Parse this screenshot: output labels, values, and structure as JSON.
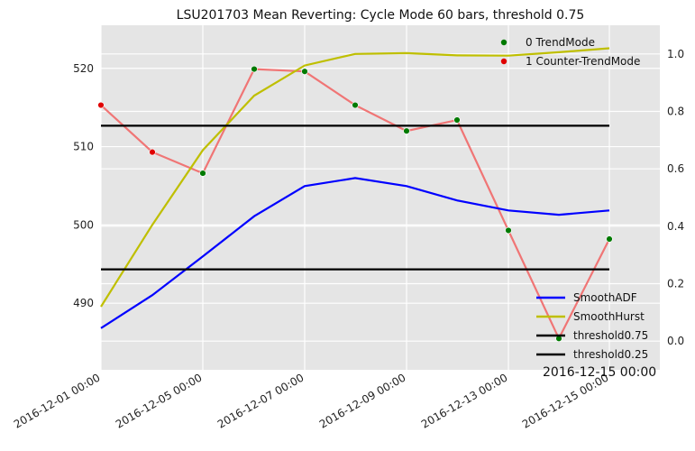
{
  "chart_data": {
    "type": "line",
    "title": "LSU201703 Mean Reverting: Cycle Mode 60 bars, threshold 0.75",
    "annotation": "2016-12-15 00:00",
    "x_tick_labels": [
      "2016-12-01 00:00",
      "2016-12-05 00:00",
      "2016-12-07 00:00",
      "2016-12-09 00:00",
      "2016-12-13 00:00",
      "2016-12-15 00:00"
    ],
    "x": [
      "2016-12-01",
      "2016-12-02",
      "2016-12-05",
      "2016-12-06",
      "2016-12-07",
      "2016-12-08",
      "2016-12-09",
      "2016-12-12",
      "2016-12-13",
      "2016-12-14",
      "2016-12-15"
    ],
    "left_axis": {
      "ylim": [
        481.5,
        525.5
      ],
      "ticks": [
        490,
        500,
        510,
        520
      ]
    },
    "right_axis": {
      "ylim": [
        -0.1,
        1.1
      ],
      "ticks": [
        0.0,
        0.2,
        0.4,
        0.6,
        0.8,
        1.0
      ]
    },
    "price": {
      "color": "#f07575",
      "values": [
        515.3,
        509.3,
        506.6,
        519.9,
        519.6,
        515.3,
        512.0,
        513.4,
        499.3,
        485.5,
        498.2
      ],
      "mode": [
        1,
        1,
        0,
        0,
        0,
        0,
        0,
        0,
        0,
        0,
        0
      ]
    },
    "point_legend": [
      {
        "label": "0 TrendMode",
        "color": "#007a00"
      },
      {
        "label": "1 Counter-TrendMode",
        "color": "#e00000"
      }
    ],
    "series": [
      {
        "name": "SmoothADF",
        "color": "#0000ff",
        "axis": "right",
        "values": [
          0.045,
          0.16,
          0.295,
          0.435,
          0.54,
          0.568,
          0.54,
          0.49,
          0.455,
          0.44,
          0.455
        ]
      },
      {
        "name": "SmoothHurst",
        "color": "#bfbf00",
        "axis": "right",
        "values": [
          0.12,
          0.405,
          0.665,
          0.855,
          0.96,
          1.0,
          1.003,
          0.995,
          0.994,
          1.006,
          1.02
        ]
      },
      {
        "name": "threshold0.75",
        "color": "#000000",
        "axis": "right",
        "values": [
          0.75,
          0.75,
          0.75,
          0.75,
          0.75,
          0.75,
          0.75,
          0.75,
          0.75,
          0.75,
          0.75
        ]
      },
      {
        "name": "threshold0.25",
        "color": "#000000",
        "axis": "right",
        "values": [
          0.25,
          0.25,
          0.25,
          0.25,
          0.25,
          0.25,
          0.25,
          0.25,
          0.25,
          0.25,
          0.25
        ]
      }
    ],
    "grid": true,
    "legend_placement": [
      "top-right",
      "bottom-right"
    ]
  }
}
